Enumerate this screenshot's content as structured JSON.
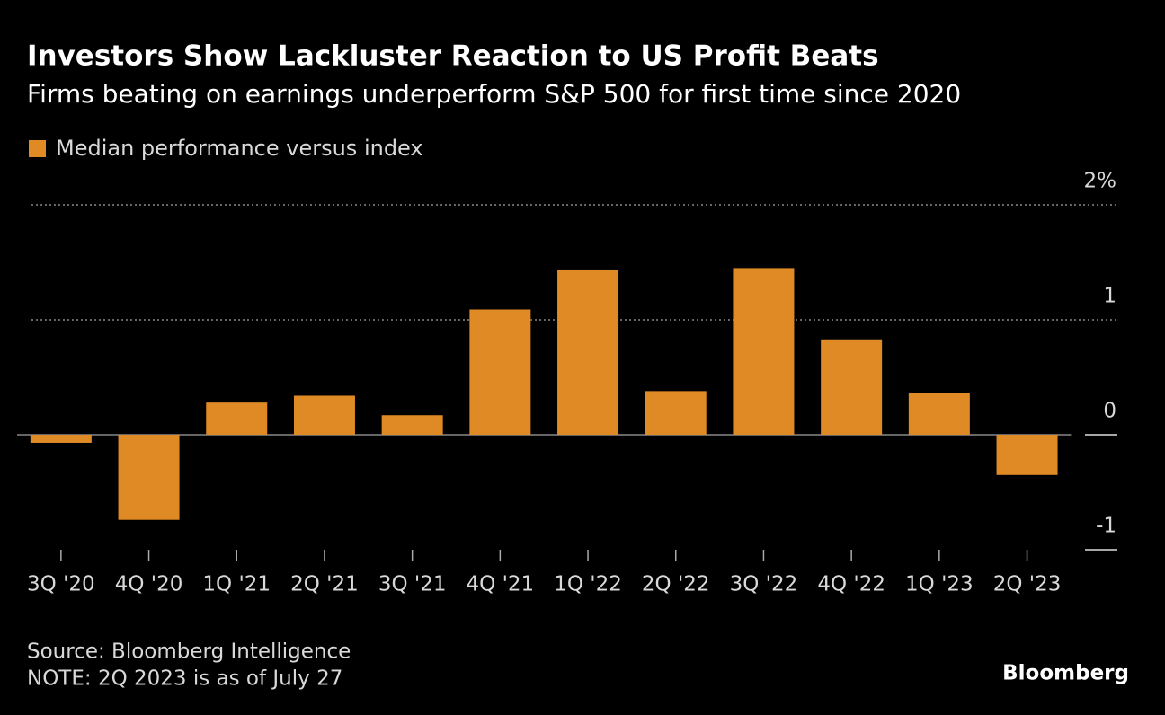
{
  "chart_data": {
    "type": "bar",
    "title": "Investors Show Lackluster Reaction to US Profit Beats",
    "subtitle": "Firms beating on earnings underperform S&P 500 for first time since 2020",
    "categories": [
      "3Q '20",
      "4Q '20",
      "1Q '21",
      "2Q '21",
      "3Q '21",
      "4Q '21",
      "1Q '22",
      "2Q '22",
      "3Q '22",
      "4Q '22",
      "1Q '23",
      "2Q '23"
    ],
    "series": [
      {
        "name": "Median performance versus index",
        "color": "#e08a26",
        "values": [
          -0.07,
          -0.74,
          0.28,
          0.34,
          0.17,
          1.09,
          1.43,
          0.38,
          1.45,
          0.83,
          0.36,
          -0.35
        ]
      }
    ],
    "ylim": [
      -1,
      2
    ],
    "yticks": [
      {
        "value": 2,
        "label": "2%"
      },
      1,
      0,
      -1
    ],
    "grid": true,
    "source": "Source: Bloomberg Intelligence",
    "note": "NOTE: 2Q 2023 is as of July 27",
    "brand": "Bloomberg"
  }
}
